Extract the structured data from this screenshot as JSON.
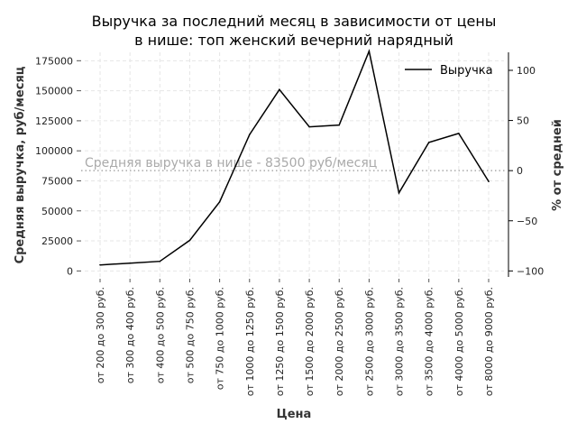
{
  "chart_data": {
    "type": "line",
    "title_lines": [
      "Выручка за последний месяц в зависимости от цены",
      "в нише: топ женский вечерний нарядный"
    ],
    "xlabel": "Цена",
    "ylabel": "Средняя выручка, руб/месяц",
    "y2label": "% от средней",
    "categories": [
      "от 200 до 300 руб.",
      "от 300 до 400 руб.",
      "от 400 до 500 руб.",
      "от 500 до 750 руб.",
      "от 750 до 1000 руб.",
      "от 1000 до 1250 руб.",
      "от 1250 до 1500 руб.",
      "от 1500 до 2000 руб.",
      "от 2000 до 2500 руб.",
      "от 2500 до 3000 руб.",
      "от 3000 до 3500 руб.",
      "от 3500 до 4000 руб.",
      "от 4000 до 5000 руб.",
      "от 8000 до 9000 руб."
    ],
    "series": [
      {
        "name": "Выручка",
        "color": "#000000",
        "values": [
          5000,
          6500,
          8000,
          25500,
          57500,
          113500,
          151000,
          120000,
          121500,
          183000,
          65000,
          107000,
          114500,
          74500
        ]
      }
    ],
    "average": {
      "value": 83500,
      "label": "Средняя выручка в нише - 83500 руб/месяц",
      "color": "#aaaaaa"
    },
    "ylim": [
      -5000,
      182000
    ],
    "yticks": [
      0,
      25000,
      50000,
      75000,
      100000,
      125000,
      150000,
      175000
    ],
    "y2ticks": [
      -100,
      -50,
      0,
      50,
      100
    ],
    "grid": true,
    "legend_position": "top-right"
  }
}
